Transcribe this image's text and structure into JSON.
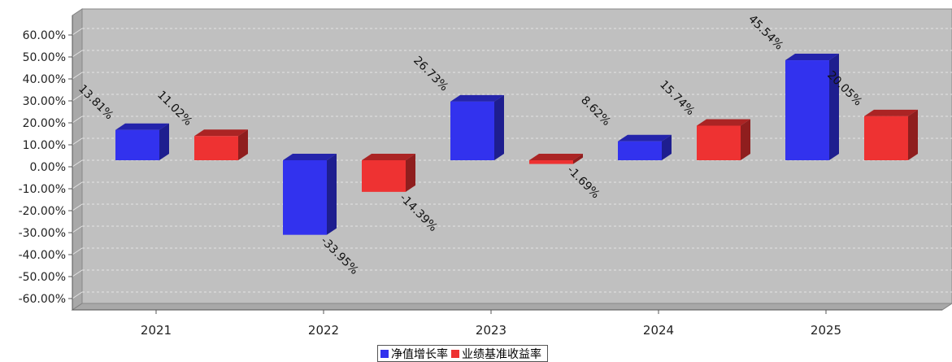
{
  "chart_data": {
    "type": "bar",
    "categories": [
      "2021",
      "2022",
      "2023",
      "2024",
      "2025"
    ],
    "series": [
      {
        "name": "净值增长率",
        "color": "#3232ee",
        "values": [
          13.81,
          -33.95,
          26.73,
          8.62,
          45.54
        ],
        "labels": [
          "13.81%",
          "-33.95%",
          "26.73%",
          "8.62%",
          "45.54%"
        ]
      },
      {
        "name": "业绩基准收益率",
        "color": "#ee3232",
        "values": [
          11.02,
          -14.39,
          -1.69,
          15.74,
          20.05
        ],
        "labels": [
          "11.02%",
          "-14.39%",
          "-1.69%",
          "15.74%",
          "20.05%"
        ]
      }
    ],
    "yticks": [
      60,
      50,
      40,
      30,
      20,
      10,
      0,
      -10,
      -20,
      -30,
      -40,
      -50,
      -60
    ],
    "ytick_labels": [
      "60.00%",
      "50.00%",
      "40.00%",
      "30.00%",
      "20.00%",
      "10.00%",
      "0.00%",
      "-10.00%",
      "-20.00%",
      "-30.00%",
      "-40.00%",
      "-50.00%",
      "-60.00%"
    ],
    "ylim": [
      -65,
      65
    ],
    "title": "",
    "xlabel": "",
    "ylabel": "",
    "grid": true,
    "legend_position": "bottom-center",
    "three_d": true,
    "plot_background": "#c0c0c0"
  }
}
